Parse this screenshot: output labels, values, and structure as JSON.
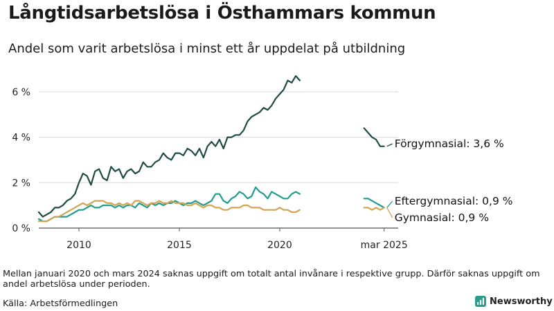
{
  "title": "Långtidsarbetslösa i Östhammars kommun",
  "subtitle": "Andel som varit arbetslösa i minst ett år uppdelat på utbildning",
  "note": "Mellan januari 2020 och mars 2024 saknas uppgift om totalt antal invånare i respektive grupp. Därför saknas uppgift om andel arbetslösa under perioden.",
  "source": "Källa: Arbetsförmedlingen",
  "brand": {
    "name": "Newsworthy",
    "icon": "chart-logo-icon",
    "color": "#2a9d8f"
  },
  "chart_data": {
    "type": "line",
    "title": "Långtidsarbetslösa i Östhammars kommun",
    "subtitle": "Andel som varit arbetslösa i minst ett år uppdelat på utbildning",
    "xlim": [
      2008.0,
      2025.9
    ],
    "ylim": [
      0,
      7.0
    ],
    "y_unit": "%",
    "yticks": [
      {
        "value": 0,
        "label": "0 %"
      },
      {
        "value": 2,
        "label": "2 %"
      },
      {
        "value": 4,
        "label": "4 %"
      },
      {
        "value": 6,
        "label": "6 %"
      }
    ],
    "xticks": [
      {
        "value": 2010,
        "label": "2010"
      },
      {
        "value": 2015,
        "label": "2015"
      },
      {
        "value": 2020,
        "label": "2020"
      },
      {
        "value": 2025.2,
        "label": "mar 2025"
      }
    ],
    "grid": "horizontal",
    "legend": "direct labels at line ends",
    "series": [
      {
        "name": "Förgymnasial",
        "end_label": "Förgymnasial: 3,6 %",
        "color": "#1f4a42",
        "x": [
          2008.0,
          2008.2,
          2008.4,
          2008.6,
          2008.8,
          2009.0,
          2009.2,
          2009.4,
          2009.6,
          2009.8,
          2010.0,
          2010.2,
          2010.4,
          2010.6,
          2010.8,
          2011.0,
          2011.2,
          2011.4,
          2011.6,
          2011.8,
          2012.0,
          2012.2,
          2012.4,
          2012.6,
          2012.8,
          2013.0,
          2013.2,
          2013.4,
          2013.6,
          2013.8,
          2014.0,
          2014.2,
          2014.4,
          2014.6,
          2014.8,
          2015.0,
          2015.2,
          2015.4,
          2015.6,
          2015.8,
          2016.0,
          2016.2,
          2016.4,
          2016.6,
          2016.8,
          2017.0,
          2017.2,
          2017.4,
          2017.6,
          2017.8,
          2018.0,
          2018.2,
          2018.4,
          2018.6,
          2018.8,
          2019.0,
          2019.2,
          2019.4,
          2019.6,
          2019.8,
          2020.0,
          2020.2,
          2020.4,
          2020.6,
          2020.8,
          2021.0,
          null,
          2024.2,
          2024.4,
          2024.6,
          2024.8,
          2025.0,
          2025.2
        ],
        "values": [
          0.7,
          0.5,
          0.6,
          0.7,
          0.9,
          0.9,
          1.0,
          1.2,
          1.3,
          1.5,
          2.0,
          2.4,
          2.3,
          1.9,
          2.5,
          2.6,
          2.2,
          2.1,
          2.7,
          2.5,
          2.6,
          2.2,
          2.5,
          2.6,
          2.4,
          2.5,
          2.9,
          2.7,
          2.7,
          2.9,
          3.0,
          3.3,
          3.1,
          3.0,
          3.3,
          3.3,
          3.2,
          3.5,
          3.4,
          3.2,
          3.5,
          3.1,
          3.6,
          3.8,
          3.6,
          3.9,
          3.5,
          4.0,
          4.0,
          4.1,
          4.1,
          4.3,
          4.7,
          4.9,
          5.0,
          5.1,
          5.3,
          5.2,
          5.4,
          5.7,
          5.9,
          6.1,
          6.5,
          6.4,
          6.7,
          6.5,
          null,
          4.4,
          4.2,
          4.0,
          3.9,
          3.6,
          3.6
        ]
      },
      {
        "name": "Eftergymnasial",
        "end_label": "Eftergymnasial: 0,9 %",
        "color": "#1f9c8e",
        "x": [
          2008.0,
          2008.2,
          2008.4,
          2008.6,
          2008.8,
          2009.0,
          2009.2,
          2009.4,
          2009.6,
          2009.8,
          2010.0,
          2010.2,
          2010.4,
          2010.6,
          2010.8,
          2011.0,
          2011.2,
          2011.4,
          2011.6,
          2011.8,
          2012.0,
          2012.2,
          2012.4,
          2012.6,
          2012.8,
          2013.0,
          2013.2,
          2013.4,
          2013.6,
          2013.8,
          2014.0,
          2014.2,
          2014.4,
          2014.6,
          2014.8,
          2015.0,
          2015.2,
          2015.4,
          2015.6,
          2015.8,
          2016.0,
          2016.2,
          2016.4,
          2016.6,
          2016.8,
          2017.0,
          2017.2,
          2017.4,
          2017.6,
          2017.8,
          2018.0,
          2018.2,
          2018.4,
          2018.6,
          2018.8,
          2019.0,
          2019.2,
          2019.4,
          2019.6,
          2019.8,
          2020.0,
          2020.2,
          2020.4,
          2020.6,
          2020.8,
          2021.0,
          null,
          2024.2,
          2024.4,
          2024.6,
          2024.8,
          2025.0,
          2025.2
        ],
        "values": [
          0.4,
          0.3,
          0.3,
          0.4,
          0.5,
          0.5,
          0.5,
          0.5,
          0.6,
          0.7,
          0.8,
          0.8,
          0.9,
          1.0,
          0.9,
          0.9,
          1.0,
          1.0,
          1.0,
          0.9,
          1.0,
          0.9,
          1.0,
          1.0,
          0.9,
          1.1,
          1.0,
          0.9,
          1.1,
          1.0,
          1.1,
          1.0,
          1.1,
          1.1,
          1.2,
          1.1,
          1.0,
          1.1,
          1.1,
          1.2,
          1.1,
          1.0,
          1.1,
          1.2,
          1.5,
          1.5,
          1.2,
          1.1,
          1.3,
          1.4,
          1.6,
          1.5,
          1.3,
          1.4,
          1.8,
          1.6,
          1.5,
          1.3,
          1.6,
          1.5,
          1.4,
          1.3,
          1.3,
          1.5,
          1.6,
          1.5,
          null,
          1.3,
          1.3,
          1.2,
          1.1,
          1.0,
          0.9
        ]
      },
      {
        "name": "Gymnasial",
        "end_label": "Gymnasial: 0,9 %",
        "color": "#d4a350",
        "x": [
          2008.0,
          2008.2,
          2008.4,
          2008.6,
          2008.8,
          2009.0,
          2009.2,
          2009.4,
          2009.6,
          2009.8,
          2010.0,
          2010.2,
          2010.4,
          2010.6,
          2010.8,
          2011.0,
          2011.2,
          2011.4,
          2011.6,
          2011.8,
          2012.0,
          2012.2,
          2012.4,
          2012.6,
          2012.8,
          2013.0,
          2013.2,
          2013.4,
          2013.6,
          2013.8,
          2014.0,
          2014.2,
          2014.4,
          2014.6,
          2014.8,
          2015.0,
          2015.2,
          2015.4,
          2015.6,
          2015.8,
          2016.0,
          2016.2,
          2016.4,
          2016.6,
          2016.8,
          2017.0,
          2017.2,
          2017.4,
          2017.6,
          2017.8,
          2018.0,
          2018.2,
          2018.4,
          2018.6,
          2018.8,
          2019.0,
          2019.2,
          2019.4,
          2019.6,
          2019.8,
          2020.0,
          2020.2,
          2020.4,
          2020.6,
          2020.8,
          2021.0,
          null,
          2024.2,
          2024.4,
          2024.6,
          2024.8,
          2025.0,
          2025.2
        ],
        "values": [
          0.3,
          0.3,
          0.3,
          0.4,
          0.5,
          0.5,
          0.6,
          0.7,
          0.8,
          0.9,
          1.0,
          1.1,
          1.0,
          1.1,
          1.2,
          1.2,
          1.2,
          1.1,
          1.1,
          1.0,
          1.1,
          1.0,
          1.1,
          1.0,
          1.2,
          1.2,
          1.1,
          1.0,
          1.1,
          1.1,
          1.2,
          1.1,
          1.1,
          1.2,
          1.1,
          1.1,
          1.1,
          1.0,
          1.0,
          1.1,
          1.0,
          0.9,
          1.0,
          1.0,
          0.9,
          0.9,
          0.8,
          0.8,
          0.9,
          0.9,
          0.9,
          1.0,
          1.0,
          0.9,
          0.9,
          0.9,
          0.8,
          0.8,
          0.8,
          0.8,
          0.9,
          0.8,
          0.8,
          0.7,
          0.7,
          0.8,
          null,
          0.9,
          0.9,
          0.8,
          0.9,
          0.8,
          0.9
        ]
      }
    ]
  }
}
